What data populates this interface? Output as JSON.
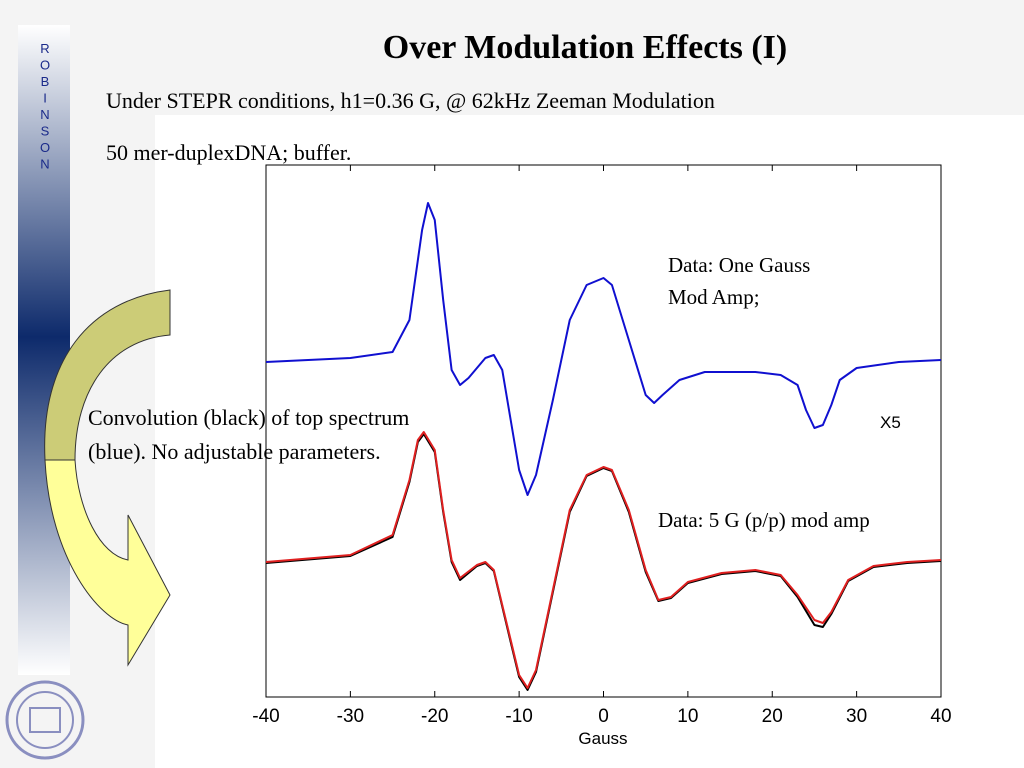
{
  "slide": {
    "title": "Over Modulation Effects (I)",
    "lines": [
      "Under STEPR conditions, h1=0.36 G, @ 62kHz Zeeman Modulation",
      "50 mer-duplexDNA; buffer."
    ],
    "sidebar": [
      "R",
      "O",
      "B",
      "I",
      "N",
      "S",
      "O",
      "N"
    ],
    "note": [
      "Convolution (black) of top spectrum",
      "(blue).  No adjustable parameters."
    ]
  },
  "chart_data": {
    "type": "line",
    "xlabel": "Gauss",
    "xlim": [
      -40,
      40
    ],
    "xticks": [
      -40,
      -30,
      -20,
      -10,
      0,
      10,
      20,
      30,
      40
    ],
    "ylim": [
      0,
      532
    ],
    "annotations": [
      {
        "text": [
          "Data:  One Gauss",
          "Mod Amp;"
        ]
      },
      {
        "text": [
          "X5"
        ]
      },
      {
        "text": [
          "Data:  5 G (p/p) mod amp"
        ]
      }
    ],
    "series": [
      {
        "color": "#1010d0",
        "x": [
          -40,
          -30,
          -25,
          -23,
          -21.5,
          -20.8,
          -20,
          -19,
          -18,
          -17,
          -16,
          -14,
          -13,
          -12,
          -11,
          -10,
          -9,
          -8,
          -6,
          -4,
          -2,
          0,
          1,
          3,
          5,
          6,
          7,
          9,
          12,
          18,
          21,
          23,
          24,
          25,
          26,
          27,
          28,
          30,
          35,
          40
        ],
        "values": [
          335,
          339,
          345,
          377,
          467,
          494,
          477,
          397,
          327,
          312,
          319,
          339,
          342,
          327,
          277,
          227,
          202,
          222,
          297,
          377,
          412,
          419,
          412,
          357,
          302,
          294,
          302,
          317,
          325,
          325,
          322,
          312,
          287,
          269,
          272,
          292,
          317,
          329,
          335,
          337
        ]
      },
      {
        "color": "#000000",
        "x": [
          -40,
          -30,
          -25,
          -23,
          -22,
          -21.3,
          -20,
          -19,
          -18,
          -17,
          -15,
          -14,
          -13,
          -11,
          -10,
          -9,
          -8,
          -6,
          -4,
          -2,
          0,
          1,
          3,
          5,
          6.5,
          8,
          10,
          14,
          18,
          21,
          23,
          25,
          26,
          27,
          29,
          32,
          36,
          40
        ],
        "values": [
          134,
          141,
          160,
          215,
          255,
          263,
          245,
          185,
          135,
          117,
          131,
          134,
          126,
          55,
          20,
          7,
          25,
          105,
          185,
          221,
          229,
          226,
          185,
          125,
          96,
          99,
          114,
          123,
          126,
          121,
          100,
          72,
          70,
          83,
          116,
          130,
          134,
          136
        ]
      },
      {
        "color": "#e02020",
        "x": [
          -40,
          -30,
          -25,
          -23,
          -22,
          -21.3,
          -20,
          -19,
          -18,
          -17,
          -15,
          -14,
          -13,
          -11,
          -10,
          -9,
          -8,
          -6,
          -4,
          -2,
          0,
          1,
          3,
          5,
          6.5,
          8,
          10,
          14,
          18,
          21,
          23,
          25,
          26,
          27,
          29,
          32,
          36,
          40
        ],
        "values": [
          135,
          142,
          162,
          217,
          257,
          265,
          247,
          187,
          137,
          119,
          132,
          135,
          127,
          57,
          22,
          9,
          27,
          107,
          187,
          222,
          230,
          227,
          187,
          127,
          97,
          100,
          115,
          124,
          127,
          122,
          102,
          77,
          74,
          85,
          117,
          131,
          135,
          137
        ]
      }
    ]
  }
}
